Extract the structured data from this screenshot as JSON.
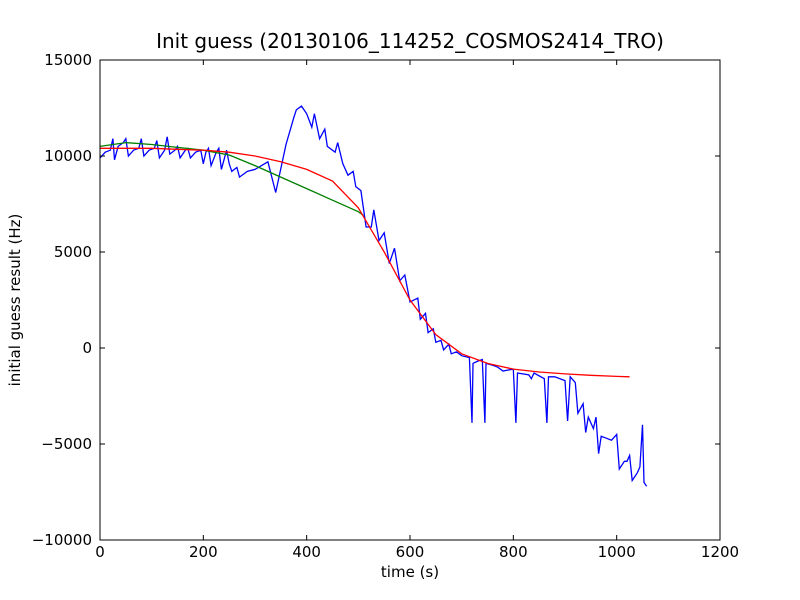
{
  "chart_data": {
    "type": "line",
    "title": "Init guess (20130106_114252_COSMOS2414_TRO)",
    "xlabel": "time (s)",
    "ylabel": "initial guess result (Hz)",
    "xlim": [
      0,
      1200
    ],
    "ylim": [
      -10000,
      15000
    ],
    "xticks": [
      0,
      200,
      400,
      600,
      800,
      1000,
      1200
    ],
    "yticks": [
      -10000,
      -5000,
      0,
      5000,
      10000,
      15000
    ],
    "grid": false,
    "legend": "none",
    "series": [
      {
        "color": "#0000ff",
        "points": [
          [
            0,
            9900
          ],
          [
            10,
            10200
          ],
          [
            20,
            10300
          ],
          [
            25,
            10900
          ],
          [
            28,
            9800
          ],
          [
            35,
            10500
          ],
          [
            45,
            10700
          ],
          [
            50,
            10900
          ],
          [
            55,
            10000
          ],
          [
            65,
            10300
          ],
          [
            75,
            10400
          ],
          [
            80,
            10900
          ],
          [
            85,
            10000
          ],
          [
            95,
            10300
          ],
          [
            105,
            10400
          ],
          [
            110,
            10800
          ],
          [
            115,
            9900
          ],
          [
            125,
            10300
          ],
          [
            130,
            11000
          ],
          [
            135,
            10100
          ],
          [
            145,
            10300
          ],
          [
            150,
            10500
          ],
          [
            155,
            9900
          ],
          [
            165,
            10300
          ],
          [
            170,
            10400
          ],
          [
            175,
            9900
          ],
          [
            185,
            10200
          ],
          [
            195,
            10300
          ],
          [
            200,
            9600
          ],
          [
            205,
            10200
          ],
          [
            210,
            10400
          ],
          [
            215,
            9500
          ],
          [
            225,
            10200
          ],
          [
            230,
            10400
          ],
          [
            235,
            9300
          ],
          [
            245,
            10300
          ],
          [
            250,
            9600
          ],
          [
            255,
            9200
          ],
          [
            260,
            9300
          ],
          [
            265,
            9400
          ],
          [
            270,
            8900
          ],
          [
            285,
            9200
          ],
          [
            300,
            9300
          ],
          [
            325,
            9700
          ],
          [
            340,
            8100
          ],
          [
            360,
            10600
          ],
          [
            375,
            12000
          ],
          [
            380,
            12400
          ],
          [
            390,
            12600
          ],
          [
            400,
            12200
          ],
          [
            410,
            11500
          ],
          [
            415,
            12200
          ],
          [
            425,
            10900
          ],
          [
            435,
            11400
          ],
          [
            440,
            10500
          ],
          [
            455,
            10200
          ],
          [
            460,
            10700
          ],
          [
            470,
            9600
          ],
          [
            480,
            9000
          ],
          [
            490,
            9200
          ],
          [
            495,
            8400
          ],
          [
            505,
            8200
          ],
          [
            515,
            6300
          ],
          [
            525,
            6300
          ],
          [
            530,
            7200
          ],
          [
            540,
            5600
          ],
          [
            550,
            6000
          ],
          [
            560,
            4400
          ],
          [
            570,
            5200
          ],
          [
            580,
            3500
          ],
          [
            590,
            3800
          ],
          [
            600,
            2400
          ],
          [
            615,
            2600
          ],
          [
            620,
            1500
          ],
          [
            630,
            1800
          ],
          [
            635,
            800
          ],
          [
            645,
            1000
          ],
          [
            650,
            300
          ],
          [
            660,
            400
          ],
          [
            665,
            -100
          ],
          [
            675,
            200
          ],
          [
            680,
            -300
          ],
          [
            690,
            -200
          ],
          [
            700,
            -400
          ],
          [
            715,
            -500
          ],
          [
            720,
            -3900
          ],
          [
            722,
            -800
          ],
          [
            730,
            -700
          ],
          [
            740,
            -600
          ],
          [
            745,
            -3900
          ],
          [
            747,
            -800
          ],
          [
            760,
            -900
          ],
          [
            770,
            -1000
          ],
          [
            780,
            -1200
          ],
          [
            800,
            -1100
          ],
          [
            805,
            -3900
          ],
          [
            808,
            -1300
          ],
          [
            830,
            -1400
          ],
          [
            835,
            -1600
          ],
          [
            840,
            -1300
          ],
          [
            860,
            -1600
          ],
          [
            865,
            -3900
          ],
          [
            868,
            -1500
          ],
          [
            880,
            -1500
          ],
          [
            900,
            -1700
          ],
          [
            905,
            -3800
          ],
          [
            910,
            -1500
          ],
          [
            920,
            -1800
          ],
          [
            925,
            -3400
          ],
          [
            935,
            -2900
          ],
          [
            940,
            -4400
          ],
          [
            945,
            -3600
          ],
          [
            955,
            -4200
          ],
          [
            960,
            -3600
          ],
          [
            965,
            -5500
          ],
          [
            970,
            -4600
          ],
          [
            980,
            -4700
          ],
          [
            990,
            -4800
          ],
          [
            1000,
            -4500
          ],
          [
            1005,
            -6300
          ],
          [
            1015,
            -5900
          ],
          [
            1020,
            -5900
          ],
          [
            1025,
            -5600
          ],
          [
            1030,
            -6900
          ],
          [
            1040,
            -6500
          ],
          [
            1045,
            -6200
          ],
          [
            1050,
            -4000
          ],
          [
            1053,
            -7000
          ],
          [
            1058,
            -7200
          ]
        ]
      },
      {
        "color": "#008000",
        "points": [
          [
            0,
            10500
          ],
          [
            50,
            10700
          ],
          [
            100,
            10600
          ],
          [
            150,
            10450
          ],
          [
            200,
            10300
          ],
          [
            250,
            10050
          ],
          [
            300,
            9500
          ],
          [
            350,
            8900
          ],
          [
            400,
            8300
          ],
          [
            450,
            7700
          ],
          [
            500,
            7100
          ],
          [
            510,
            6900
          ]
        ]
      },
      {
        "color": "#ff0000",
        "points": [
          [
            0,
            10400
          ],
          [
            50,
            10400
          ],
          [
            100,
            10400
          ],
          [
            150,
            10350
          ],
          [
            200,
            10300
          ],
          [
            250,
            10200
          ],
          [
            300,
            10000
          ],
          [
            350,
            9700
          ],
          [
            400,
            9300
          ],
          [
            450,
            8700
          ],
          [
            500,
            7300
          ],
          [
            550,
            5000
          ],
          [
            600,
            2500
          ],
          [
            650,
            700
          ],
          [
            700,
            -300
          ],
          [
            750,
            -800
          ],
          [
            800,
            -1100
          ],
          [
            850,
            -1250
          ],
          [
            900,
            -1350
          ],
          [
            950,
            -1420
          ],
          [
            1000,
            -1480
          ],
          [
            1025,
            -1500
          ]
        ]
      }
    ]
  }
}
